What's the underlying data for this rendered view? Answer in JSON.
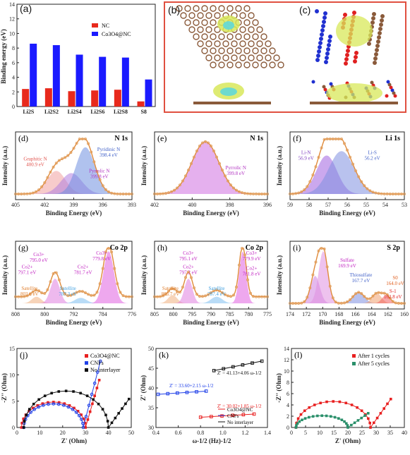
{
  "a": {
    "label": "(a)",
    "ylabel": "Binding energy (eV)",
    "legend": [
      "NC",
      "Co3O4@NC"
    ],
    "yticks": [
      "0",
      "2",
      "4",
      "6",
      "8",
      "10",
      "12",
      "14"
    ],
    "chart_data": {
      "type": "bar",
      "categories": [
        "Li2S",
        "Li2S2",
        "Li2S4",
        "Li2S6",
        "Li2S8",
        "S8"
      ],
      "series": [
        {
          "name": "NC",
          "values": [
            2.4,
            2.5,
            2.1,
            2.2,
            2.3,
            0.7
          ],
          "color": "#e8291c"
        },
        {
          "name": "Co3O4@NC",
          "values": [
            8.6,
            8.4,
            7.1,
            6.8,
            6.7,
            3.7
          ],
          "color": "#1a1aff"
        }
      ],
      "ylim": [
        0,
        14
      ]
    }
  },
  "b": {
    "label": "(b)"
  },
  "c": {
    "label": "(c)"
  },
  "d": {
    "label": "(d)",
    "title": "N 1s",
    "xlabel": "Binding Energy (eV)",
    "ylabel": "Intensity (a.u.)",
    "xticks": [
      "405",
      "402",
      "399",
      "396",
      "393"
    ],
    "peaks": [
      {
        "name": "Graphitic N",
        "value": "400.9 eV",
        "color": "#e0504a"
      },
      {
        "name": "Pyridinic N",
        "value": "398.4 eV",
        "color": "#4060c8"
      },
      {
        "name": "Pyrrolic N",
        "value": "399.8 eV",
        "color": "#b030c0"
      }
    ]
  },
  "e": {
    "label": "(e)",
    "title": "N 1s",
    "xlabel": "Binding Energy (eV)",
    "ylabel": "Intensity (a.u.)",
    "xticks": [
      "402",
      "400",
      "398",
      "396"
    ],
    "peaks": [
      {
        "name": "Pyrrolic N",
        "value": "399.8 eV",
        "color": "#b030c0"
      }
    ]
  },
  "f": {
    "label": "(f)",
    "title": "Li 1s",
    "xlabel": "Binding Energy (eV)",
    "ylabel": "Intensity (a.u.)",
    "xticks": [
      "59",
      "58",
      "57",
      "56",
      "55",
      "54",
      "53"
    ],
    "peaks": [
      {
        "name": "Li-N",
        "value": "56.9 eV",
        "color": "#8040c0"
      },
      {
        "name": "Li-S",
        "value": "56.2 eV",
        "color": "#4060c8"
      }
    ]
  },
  "g": {
    "label": "(g)",
    "title": "Co 2p",
    "xlabel": "Binding Energy (eV)",
    "ylabel": "Intensity (a.u.)",
    "xticks": [
      "808",
      "800",
      "792",
      "784",
      "776"
    ],
    "peaks": [
      {
        "name": "Co3+",
        "value": "795.0 eV",
        "color": "#c020c0"
      },
      {
        "name": "Co2+",
        "value": "797.1 eV",
        "color": "#c020c0"
      },
      {
        "name": "Satellite",
        "value": "803.6 eV",
        "color": "#e08030"
      },
      {
        "name": "Satellite",
        "value": "787.3 eV",
        "color": "#40a0e0"
      },
      {
        "name": "Co2+",
        "value": "781.7 eV",
        "color": "#c020c0"
      },
      {
        "name": "Co3+",
        "value": "779.8 eV",
        "color": "#c020c0"
      }
    ]
  },
  "h": {
    "label": "(h)",
    "title": "Co 2p",
    "xlabel": "Binding Energy (eV)",
    "ylabel": "Intensity (a.u.)",
    "xticks": [
      "805",
      "800",
      "795",
      "790",
      "785",
      "780",
      "775"
    ],
    "peaks": [
      {
        "name": "Co3+",
        "value": "795.1 eV",
        "color": "#c020c0"
      },
      {
        "name": "Co2+",
        "value": "797.2 eV",
        "color": "#c020c0"
      },
      {
        "name": "Satellite",
        "value": "803.7 eV",
        "color": "#e08030"
      },
      {
        "name": "Satellite",
        "value": "787.4 eV",
        "color": "#40a0e0"
      },
      {
        "name": "Co3+",
        "value": "779.9 eV",
        "color": "#c020c0"
      },
      {
        "name": "Co2+",
        "value": "781.8 eV",
        "color": "#c020c0"
      }
    ]
  },
  "i": {
    "label": "(i)",
    "title": "S 2p",
    "xlabel": "Binding Energy (eV)",
    "ylabel": "Intensity (a.u.)",
    "xticks": [
      "174",
      "172",
      "170",
      "168",
      "166",
      "164",
      "162",
      "160"
    ],
    "peaks": [
      {
        "name": "Sulfate",
        "value": "169.9 eV",
        "color": "#c020c0"
      },
      {
        "name": "Thiosulfate",
        "value": "167.7 eV",
        "color": "#4060c8"
      },
      {
        "name": "S0",
        "value": "164.0 eV",
        "color": "#e06020"
      },
      {
        "name": "S-1",
        "value": "162.8 eV",
        "color": "#e02020"
      }
    ]
  },
  "j": {
    "label": "(j)",
    "xlabel": "Z' (Ohm)",
    "ylabel": "-Z'' (Ohm)",
    "xticks": [
      "0",
      "10",
      "20",
      "30",
      "40",
      "50"
    ],
    "yticks": [
      "0",
      "5",
      "10",
      "15"
    ],
    "legend": [
      {
        "name": "Co3O4@NC",
        "color": "#e82020"
      },
      {
        "name": "CNFs",
        "color": "#2040e8"
      },
      {
        "name": "No interlayer",
        "color": "#111111"
      }
    ]
  },
  "k": {
    "label": "(k)",
    "xlabel": "ω-1/2 (Hz)-1/2",
    "ylabel": "Z' (Ohm)",
    "xticks": [
      "0.4",
      "0.6",
      "0.8",
      "1.0",
      "1.2",
      "1.4"
    ],
    "yticks": [
      "30",
      "35",
      "40",
      "45",
      "50"
    ],
    "fits": [
      {
        "text": "Z' = 41.13+4.06 ω-1/2",
        "color": "#111"
      },
      {
        "text": "Z' = 33.60+2.15 ω-1/2",
        "color": "#2040e8"
      },
      {
        "text": "Z' = 30.02+1.85 ω-1/2",
        "color": "#e82020"
      }
    ],
    "legend": [
      {
        "name": "Co3O4@NC",
        "color": "#e82020"
      },
      {
        "name": "CNFs",
        "color": "#2040e8"
      },
      {
        "name": "No interlayer",
        "color": "#111111"
      }
    ]
  },
  "l": {
    "label": "(l)",
    "xlabel": "Z' (Ohm)",
    "ylabel": "-Z'' (Ohm)",
    "xticks": [
      "0",
      "5",
      "10",
      "15",
      "20",
      "25",
      "30",
      "35",
      "40"
    ],
    "yticks": [
      "0",
      "2",
      "4",
      "6",
      "8",
      "10",
      "12",
      "14"
    ],
    "legend": [
      {
        "name": "After 1 cycles",
        "color": "#e82020"
      },
      {
        "name": "After 5 cycles",
        "color": "#2a8f6a"
      }
    ]
  }
}
